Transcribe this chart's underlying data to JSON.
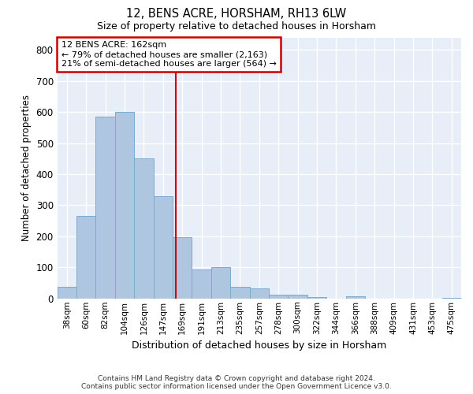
{
  "title": "12, BENS ACRE, HORSHAM, RH13 6LW",
  "subtitle": "Size of property relative to detached houses in Horsham",
  "xlabel": "Distribution of detached houses by size in Horsham",
  "ylabel": "Number of detached properties",
  "categories": [
    "38sqm",
    "60sqm",
    "82sqm",
    "104sqm",
    "126sqm",
    "147sqm",
    "169sqm",
    "191sqm",
    "213sqm",
    "235sqm",
    "257sqm",
    "278sqm",
    "300sqm",
    "322sqm",
    "344sqm",
    "366sqm",
    "388sqm",
    "409sqm",
    "431sqm",
    "453sqm",
    "475sqm"
  ],
  "values": [
    38,
    265,
    585,
    600,
    450,
    328,
    196,
    92,
    101,
    38,
    33,
    13,
    11,
    5,
    0,
    7,
    0,
    0,
    0,
    0,
    3
  ],
  "bar_color": "#aec6df",
  "bar_edge_color": "#7aaacf",
  "annotation_text_line1": "12 BENS ACRE: 162sqm",
  "annotation_text_line2": "← 79% of detached houses are smaller (2,163)",
  "annotation_text_line3": "21% of semi-detached houses are larger (564) →",
  "annotation_box_color": "#ffffff",
  "annotation_box_edge_color": "#cc0000",
  "vline_color": "#cc0000",
  "ylim": [
    0,
    840
  ],
  "yticks": [
    0,
    100,
    200,
    300,
    400,
    500,
    600,
    700,
    800
  ],
  "background_color": "#e8eef8",
  "grid_color": "#ffffff",
  "footer_line1": "Contains HM Land Registry data © Crown copyright and database right 2024.",
  "footer_line2": "Contains public sector information licensed under the Open Government Licence v3.0."
}
